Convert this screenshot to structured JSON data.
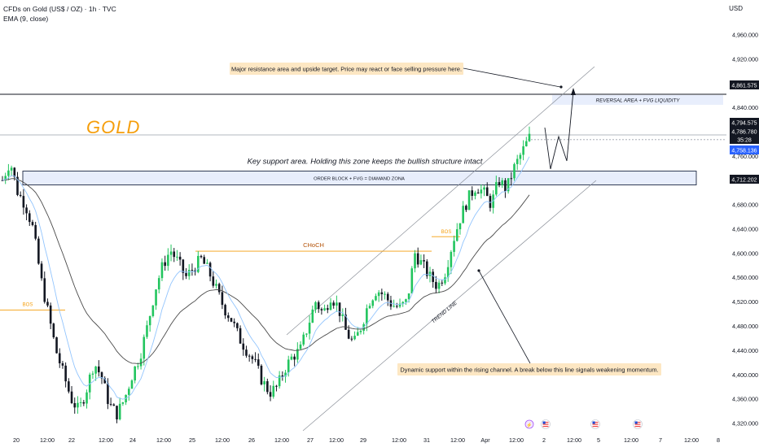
{
  "header": {
    "symbol_line": "CFDs on Gold (US$ / OZ) · 1h · TVC",
    "indicator_line": "EMA (9, close)",
    "currency": "USD"
  },
  "colors": {
    "up": "#089981",
    "up_bright": "#22c55e",
    "down": "#131722",
    "ema": "#4a4a4a",
    "ema_fast": "#93c5fd",
    "accent_orange": "#f59e0b",
    "zone_fill": "#e8eefc",
    "zone_stroke": "#1f2a44",
    "note_fill": "#fde7c3",
    "price_blue": "#2962ff",
    "price_black": "#131722"
  },
  "chart_data": {
    "type": "candlestick",
    "symbol": "CFDs on Gold (US$ / OZ)",
    "timeframe": "1h",
    "ylim": [
      4310,
      4990
    ],
    "y_ticks": [
      4320,
      4360,
      4400,
      4440,
      4480,
      4520,
      4560,
      4600,
      4640,
      4680,
      4720,
      4760,
      4800,
      4840,
      4880,
      4920,
      4960
    ],
    "y_tick_labels": [
      "4,320.000",
      "4,360.000",
      "4,400.000",
      "4,440.000",
      "4,480.000",
      "4,520.000",
      "4,560.000",
      "4,600.000",
      "4,640.000",
      "4,680.000",
      "4,720.000",
      "4,760.000",
      "4,800.000",
      "4,840.000",
      "4,880.000",
      "4,920.000",
      "4,960.000"
    ],
    "x_ticks": [
      "20",
      "12:00",
      "22",
      "12:00",
      "24",
      "12:00",
      "25",
      "12:00",
      "26",
      "12:00",
      "27",
      "12:00",
      "29",
      "12:00",
      "31",
      "12:00",
      "Apr",
      "12:00",
      "2",
      "12:00",
      "5",
      "12:00",
      "7",
      "12:00",
      "8"
    ],
    "price_labels": [
      {
        "value": "4,861.575",
        "style": "black"
      },
      {
        "value": "4,794.575",
        "style": "black"
      },
      {
        "value": "4,786.780",
        "style": "black"
      },
      {
        "value": "35:28",
        "style": "black"
      },
      {
        "value": "4,758.136",
        "style": "blue"
      },
      {
        "value": "4,712.202",
        "style": "black"
      }
    ],
    "key_levels": {
      "resistance": 4861.575,
      "zone_top": 4730,
      "zone_bottom": 4712.2,
      "last": 4786.78,
      "ema": 4758.136
    },
    "series_path": [
      4720,
      4752,
      4700,
      4680,
      4640,
      4560,
      4500,
      4440,
      4400,
      4360,
      4340,
      4375,
      4420,
      4395,
      4350,
      4335,
      4360,
      4400,
      4430,
      4480,
      4540,
      4580,
      4605,
      4585,
      4560,
      4575,
      4590,
      4570,
      4540,
      4510,
      4490,
      4460,
      4440,
      4420,
      4390,
      4370,
      4380,
      4410,
      4430,
      4440,
      4480,
      4520,
      4500,
      4530,
      4510,
      4470,
      4450,
      4480,
      4520,
      4540,
      4530,
      4515,
      4510,
      4520,
      4600,
      4580,
      4560,
      4545,
      4570,
      4620,
      4660,
      4690,
      4710,
      4700,
      4680,
      4720,
      4705,
      4740,
      4765,
      4790
    ]
  },
  "annotations": {
    "gold": "GOLD",
    "resistance_note": "Major resistance area and upside target. Price may react or face selling pressure here.",
    "reversal": "REVERSAL AREA + FVG LIQUIDITY",
    "support_note": "Key support area. Holding this zone keeps the bullish structure intact",
    "order_block": "ORDER BLOCK + FVG =  DIAMAND ZONA",
    "choch": "CHoCH",
    "bos_left": "BOS",
    "bos_right": "BOS",
    "trend_line": "TREND LINE",
    "dynamic_note": "Dynamic support within the rising channel. A break below this line signals weakening momentum."
  }
}
